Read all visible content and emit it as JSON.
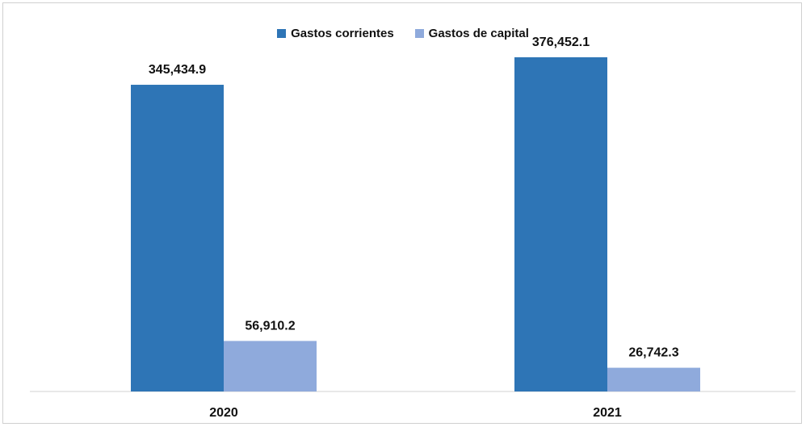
{
  "chart_data": {
    "type": "bar",
    "categories": [
      "2020",
      "2021"
    ],
    "series": [
      {
        "name": "Gastos corrientes",
        "color": "#2e75b6",
        "values": [
          345434.9,
          376452.1
        ],
        "labels": [
          "345,434.9",
          "376,452.1"
        ]
      },
      {
        "name": "Gastos de capital",
        "color": "#8faadc",
        "values": [
          56910.2,
          26742.3
        ],
        "labels": [
          "56,910.2",
          "26,742.3"
        ]
      }
    ],
    "title": "",
    "xlabel": "",
    "ylabel": "",
    "ylim": [
      0,
      400000
    ],
    "grid": false,
    "legend_position": "top-center"
  }
}
